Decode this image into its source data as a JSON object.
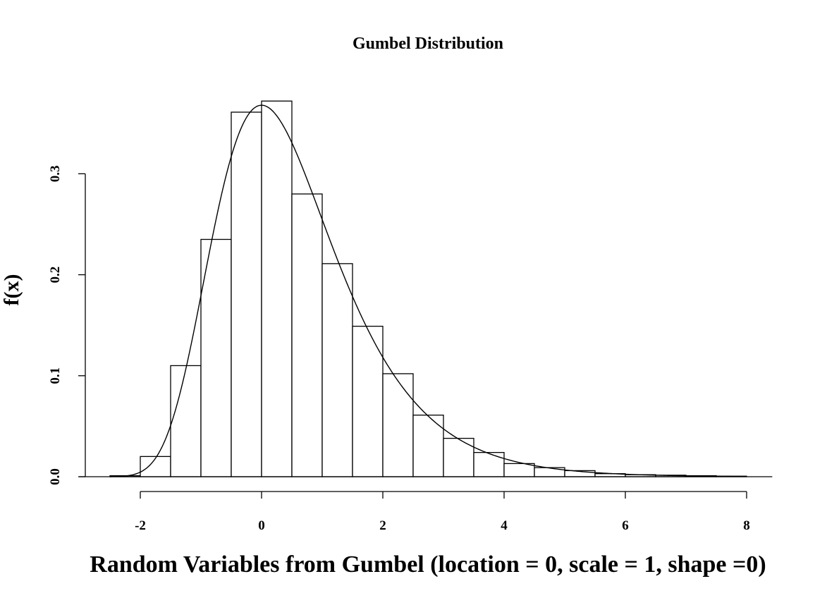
{
  "chart_data": {
    "type": "bar",
    "title": "Gumbel Distribution",
    "xlabel": "Random Variables from Gumbel (location = 0, scale = 1, shape =0)",
    "ylabel": "f(x)",
    "xlim": [
      -2.6,
      8.4
    ],
    "ylim": [
      0,
      0.375
    ],
    "x_ticks": [
      "-2",
      "0",
      "2",
      "4",
      "6",
      "8"
    ],
    "y_ticks": [
      "0.0",
      "0.1",
      "0.2",
      "0.3"
    ],
    "bin_width": 0.5,
    "bins": [
      {
        "x0": -2.5,
        "value": 0.001
      },
      {
        "x0": -2.0,
        "value": 0.02
      },
      {
        "x0": -1.5,
        "value": 0.11
      },
      {
        "x0": -1.0,
        "value": 0.235
      },
      {
        "x0": -0.5,
        "value": 0.361
      },
      {
        "x0": 0.0,
        "value": 0.372
      },
      {
        "x0": 0.5,
        "value": 0.28
      },
      {
        "x0": 1.0,
        "value": 0.211
      },
      {
        "x0": 1.5,
        "value": 0.149
      },
      {
        "x0": 2.0,
        "value": 0.102
      },
      {
        "x0": 2.5,
        "value": 0.061
      },
      {
        "x0": 3.0,
        "value": 0.038
      },
      {
        "x0": 3.5,
        "value": 0.024
      },
      {
        "x0": 4.0,
        "value": 0.013
      },
      {
        "x0": 4.5,
        "value": 0.009
      },
      {
        "x0": 5.0,
        "value": 0.006
      },
      {
        "x0": 5.5,
        "value": 0.003
      },
      {
        "x0": 6.0,
        "value": 0.002
      },
      {
        "x0": 6.5,
        "value": 0.0015
      },
      {
        "x0": 7.0,
        "value": 0.001
      },
      {
        "x0": 7.5,
        "value": 0.0005
      }
    ],
    "curve": {
      "distribution": "gumbel",
      "location": 0,
      "scale": 1,
      "shape": 0,
      "x_range": [
        -2.5,
        8.0
      ]
    },
    "grid": false,
    "legend": "none"
  }
}
